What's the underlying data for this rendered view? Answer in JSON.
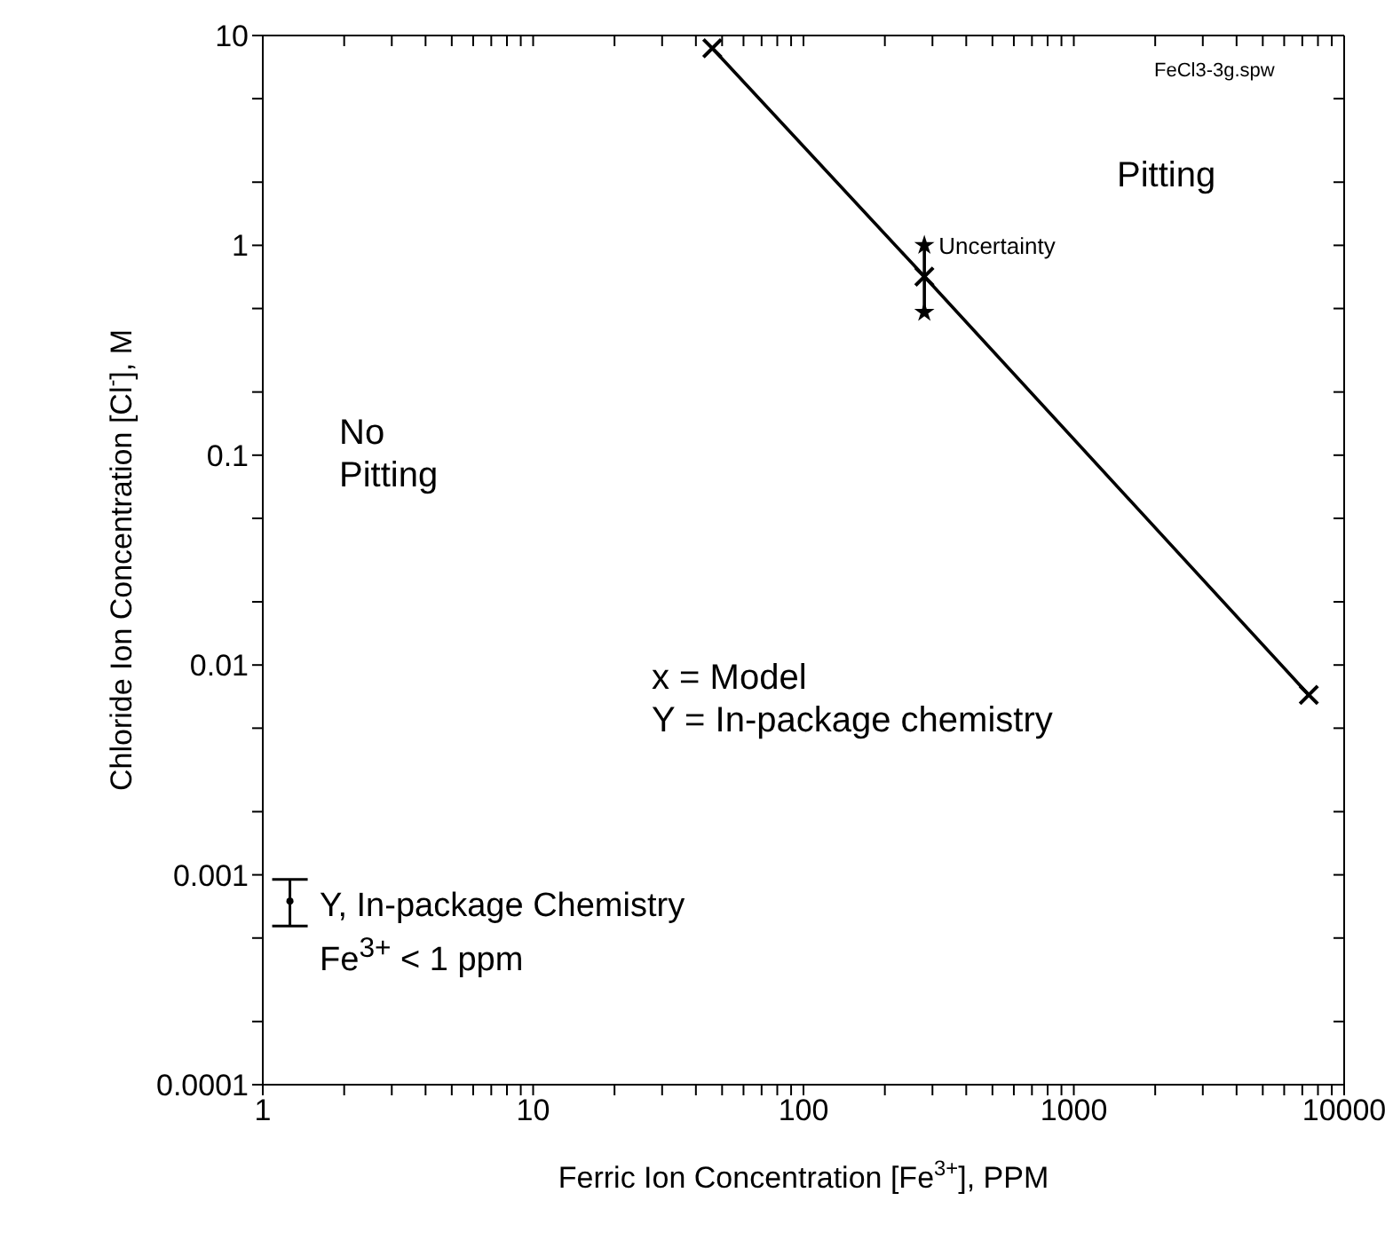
{
  "chart_data": {
    "type": "line",
    "xlabel": "Ferric Ion Concentration [Fe$^{3+}$], PPM",
    "ylabel": "Chloride Ion Concentration [Cl$^{-}$], M",
    "log": "xy",
    "xlim": [
      1,
      10000
    ],
    "ylim": [
      0.0001,
      10
    ],
    "xticks": [
      1,
      {
        "value": 2,
        "label": null
      },
      {
        "value": 3,
        "label": null
      },
      {
        "value": 4,
        "label": null
      },
      {
        "value": 5,
        "label": null
      },
      {
        "value": 6,
        "label": null
      },
      {
        "value": 7,
        "label": null
      },
      {
        "value": 8,
        "label": null
      },
      {
        "value": 9,
        "label": null
      },
      10,
      {
        "value": 20,
        "label": null
      },
      {
        "value": 30,
        "label": null
      },
      {
        "value": 40,
        "label": null
      },
      {
        "value": 50,
        "label": null
      },
      {
        "value": 60,
        "label": null
      },
      {
        "value": 70,
        "label": null
      },
      {
        "value": 80,
        "label": null
      },
      {
        "value": 90,
        "label": null
      },
      100,
      {
        "value": 200,
        "label": null
      },
      {
        "value": 300,
        "label": null
      },
      {
        "value": 400,
        "label": null
      },
      {
        "value": 500,
        "label": null
      },
      {
        "value": 600,
        "label": null
      },
      {
        "value": 700,
        "label": null
      },
      {
        "value": 800,
        "label": null
      },
      {
        "value": 900,
        "label": null
      },
      1000,
      {
        "value": 2000,
        "label": null
      },
      {
        "value": 3000,
        "label": null
      },
      {
        "value": 4000,
        "label": null
      },
      {
        "value": 5000,
        "label": null
      },
      {
        "value": 6000,
        "label": null
      },
      {
        "value": 7000,
        "label": null
      },
      {
        "value": 8000,
        "label": null
      },
      {
        "value": 9000,
        "label": null
      },
      10000
    ],
    "yticks": [
      0.0001,
      {
        "value": 0.0002,
        "label": null
      },
      {
        "value": 0.0005,
        "label": null
      },
      0.001,
      {
        "value": 0.002,
        "label": null
      },
      {
        "value": 0.005,
        "label": null
      },
      0.01,
      {
        "value": 0.02,
        "label": null
      },
      {
        "value": 0.05,
        "label": null
      },
      0.1,
      {
        "value": 0.2,
        "label": null
      },
      {
        "value": 0.5,
        "label": null
      },
      1,
      {
        "value": 2,
        "label": null
      },
      {
        "value": 5,
        "label": null
      },
      10
    ],
    "series": [
      {
        "marker": "cross",
        "color": "#000000",
        "x": [
          46,
          280,
          7400
        ],
        "values": [
          8.7,
          0.71,
          0.0072
        ]
      },
      {
        "type": "line",
        "marker": "star",
        "color": "#000000",
        "x": [
          280,
          280
        ],
        "values": [
          1.0,
          0.48
        ]
      },
      {
        "type": "scatter",
        "marker": "circle",
        "color": "#000000",
        "x": [
          1.26
        ],
        "values": [
          0.00075
        ],
        "errors": [
          [
            0.00057,
            0.00095
          ]
        ]
      }
    ],
    "annotations": [
      "FeCl3-3g.spw",
      "Pitting",
      "No Pitting",
      "x = Model",
      "Y = In-package chemistry",
      "Y, In-package Chemistry",
      "Fe$^{3+}$ < 1 ppm",
      {
        "text": "Uncertainty",
        "x": 280,
        "y": 1.0
      }
    ]
  }
}
